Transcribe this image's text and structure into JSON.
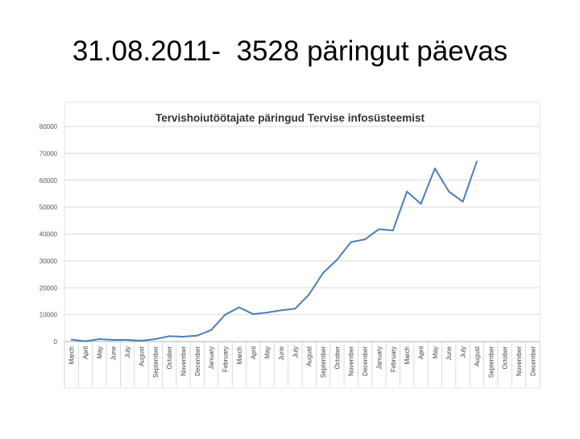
{
  "slide": {
    "title": "31.08.2011-  3528 päringut päevas"
  },
  "chart_data": {
    "type": "line",
    "title": "Tervishoiutöötajate päringud Tervise infosüsteemist",
    "xlabel": "",
    "ylabel": "",
    "ylim": [
      0,
      80000
    ],
    "yticks": [
      "0",
      "10000",
      "20000",
      "30000",
      "40000",
      "50000",
      "60000",
      "70000",
      "80000"
    ],
    "grid": true,
    "legend": "none",
    "line_color": "#4a7ebb",
    "categories": [
      "March",
      "April",
      "May",
      "June",
      "July",
      "August",
      "September",
      "October",
      "November",
      "December",
      "January",
      "February",
      "March",
      "April",
      "May",
      "June",
      "July",
      "August",
      "September",
      "October",
      "November",
      "December",
      "January",
      "February",
      "March",
      "April",
      "May",
      "June",
      "July",
      "August",
      "September",
      "October",
      "November",
      "December"
    ],
    "values": [
      700,
      100,
      900,
      600,
      600,
      300,
      900,
      2000,
      1800,
      2200,
      4300,
      10000,
      12700,
      10200,
      10800,
      11600,
      12200,
      17500,
      25500,
      30400,
      37000,
      38000,
      41800,
      41300,
      55800,
      51200,
      64400,
      55800,
      52000,
      67000,
      null,
      null,
      null,
      null
    ]
  }
}
